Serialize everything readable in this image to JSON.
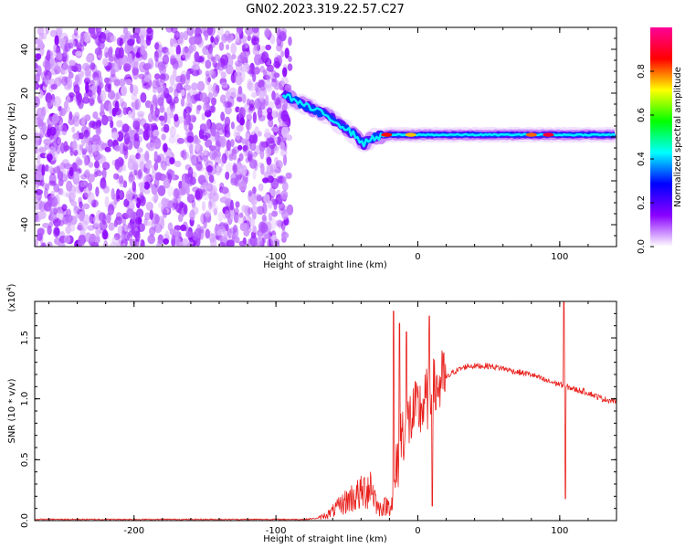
{
  "title": "GN02.2023.319.22.57.C27",
  "chart_data": [
    {
      "type": "heatmap",
      "xlabel": "Height of straight line (km)",
      "ylabel": "Frequency (Hz)",
      "xlim": [
        -270,
        140
      ],
      "ylim": [
        -50,
        50
      ],
      "xticks": [
        -200,
        -100,
        0,
        100
      ],
      "yticks": [
        -40,
        -20,
        0,
        20,
        40
      ],
      "colorbar": {
        "label": "Normalized spectral amplitude",
        "range": [
          0,
          1
        ],
        "ticks": [
          0.0,
          0.2,
          0.4,
          0.6,
          0.8
        ],
        "colormap": [
          "#ffffff",
          "#8a00ff",
          "#0000ff",
          "#00ffff",
          "#00ff00",
          "#ffff00",
          "#ff0000",
          "#ff0099"
        ]
      },
      "noise_region": {
        "x_from": -270,
        "x_to": -90,
        "freq_from": -50,
        "freq_to": 50,
        "amplitude": 0.1
      },
      "ridge": [
        {
          "x": -95,
          "freq": 20
        },
        {
          "x": -85,
          "freq": 16
        },
        {
          "x": -75,
          "freq": 13
        },
        {
          "x": -65,
          "freq": 10
        },
        {
          "x": -55,
          "freq": 6
        },
        {
          "x": -45,
          "freq": 1
        },
        {
          "x": -38,
          "freq": -3
        },
        {
          "x": -30,
          "freq": 0
        },
        {
          "x": -20,
          "freq": 1
        },
        {
          "x": 0,
          "freq": 1
        },
        {
          "x": 20,
          "freq": 1
        },
        {
          "x": 60,
          "freq": 1
        },
        {
          "x": 100,
          "freq": 1
        },
        {
          "x": 140,
          "freq": 1
        }
      ],
      "hot_spots": [
        {
          "x": -22,
          "freq": 1,
          "amplitude": 0.85
        },
        {
          "x": -5,
          "freq": 1,
          "amplitude": 0.75
        },
        {
          "x": 80,
          "freq": 1,
          "amplitude": 0.8
        },
        {
          "x": 92,
          "freq": 1,
          "amplitude": 0.9
        }
      ]
    },
    {
      "type": "line",
      "xlabel": "Height of straight line (km)",
      "ylabel": "SNR (10 * v/v)",
      "yscale_label": "(x10",
      "yscale_exp": "4",
      "yscale_close": ")",
      "xlim": [
        -270,
        140
      ],
      "ylim": [
        0,
        1.8
      ],
      "xticks": [
        -200,
        -100,
        0,
        100
      ],
      "yticks": [
        0.0,
        0.5,
        1.0,
        1.5
      ],
      "color": "#e8201c",
      "envelope": [
        [
          -270,
          0.01
        ],
        [
          -150,
          0.01
        ],
        [
          -80,
          0.01
        ],
        [
          -70,
          0.02
        ],
        [
          -62,
          0.06
        ],
        [
          -55,
          0.12
        ],
        [
          -48,
          0.18
        ],
        [
          -40,
          0.22
        ],
        [
          -33,
          0.3
        ],
        [
          -28,
          0.1
        ],
        [
          -22,
          0.12
        ],
        [
          -18,
          0.15
        ],
        [
          -15,
          0.4
        ],
        [
          -12,
          0.7
        ],
        [
          -8,
          0.8
        ],
        [
          -4,
          0.85
        ],
        [
          0,
          0.9
        ],
        [
          4,
          0.95
        ],
        [
          10,
          1.05
        ],
        [
          18,
          1.15
        ],
        [
          25,
          1.22
        ],
        [
          35,
          1.27
        ],
        [
          50,
          1.27
        ],
        [
          60,
          1.25
        ],
        [
          70,
          1.22
        ],
        [
          80,
          1.2
        ],
        [
          90,
          1.15
        ],
        [
          100,
          1.12
        ],
        [
          110,
          1.08
        ],
        [
          120,
          1.05
        ],
        [
          130,
          1.0
        ],
        [
          140,
          0.98
        ]
      ],
      "spikes": [
        {
          "x": -17,
          "y": 1.72
        },
        {
          "x": -13,
          "y": 1.62
        },
        {
          "x": -8,
          "y": 1.55
        },
        {
          "x": 8,
          "y": 1.68
        },
        {
          "x": 10,
          "y": 0.12
        },
        {
          "x": 103,
          "y": 1.82
        },
        {
          "x": 104,
          "y": 0.18
        }
      ]
    }
  ]
}
